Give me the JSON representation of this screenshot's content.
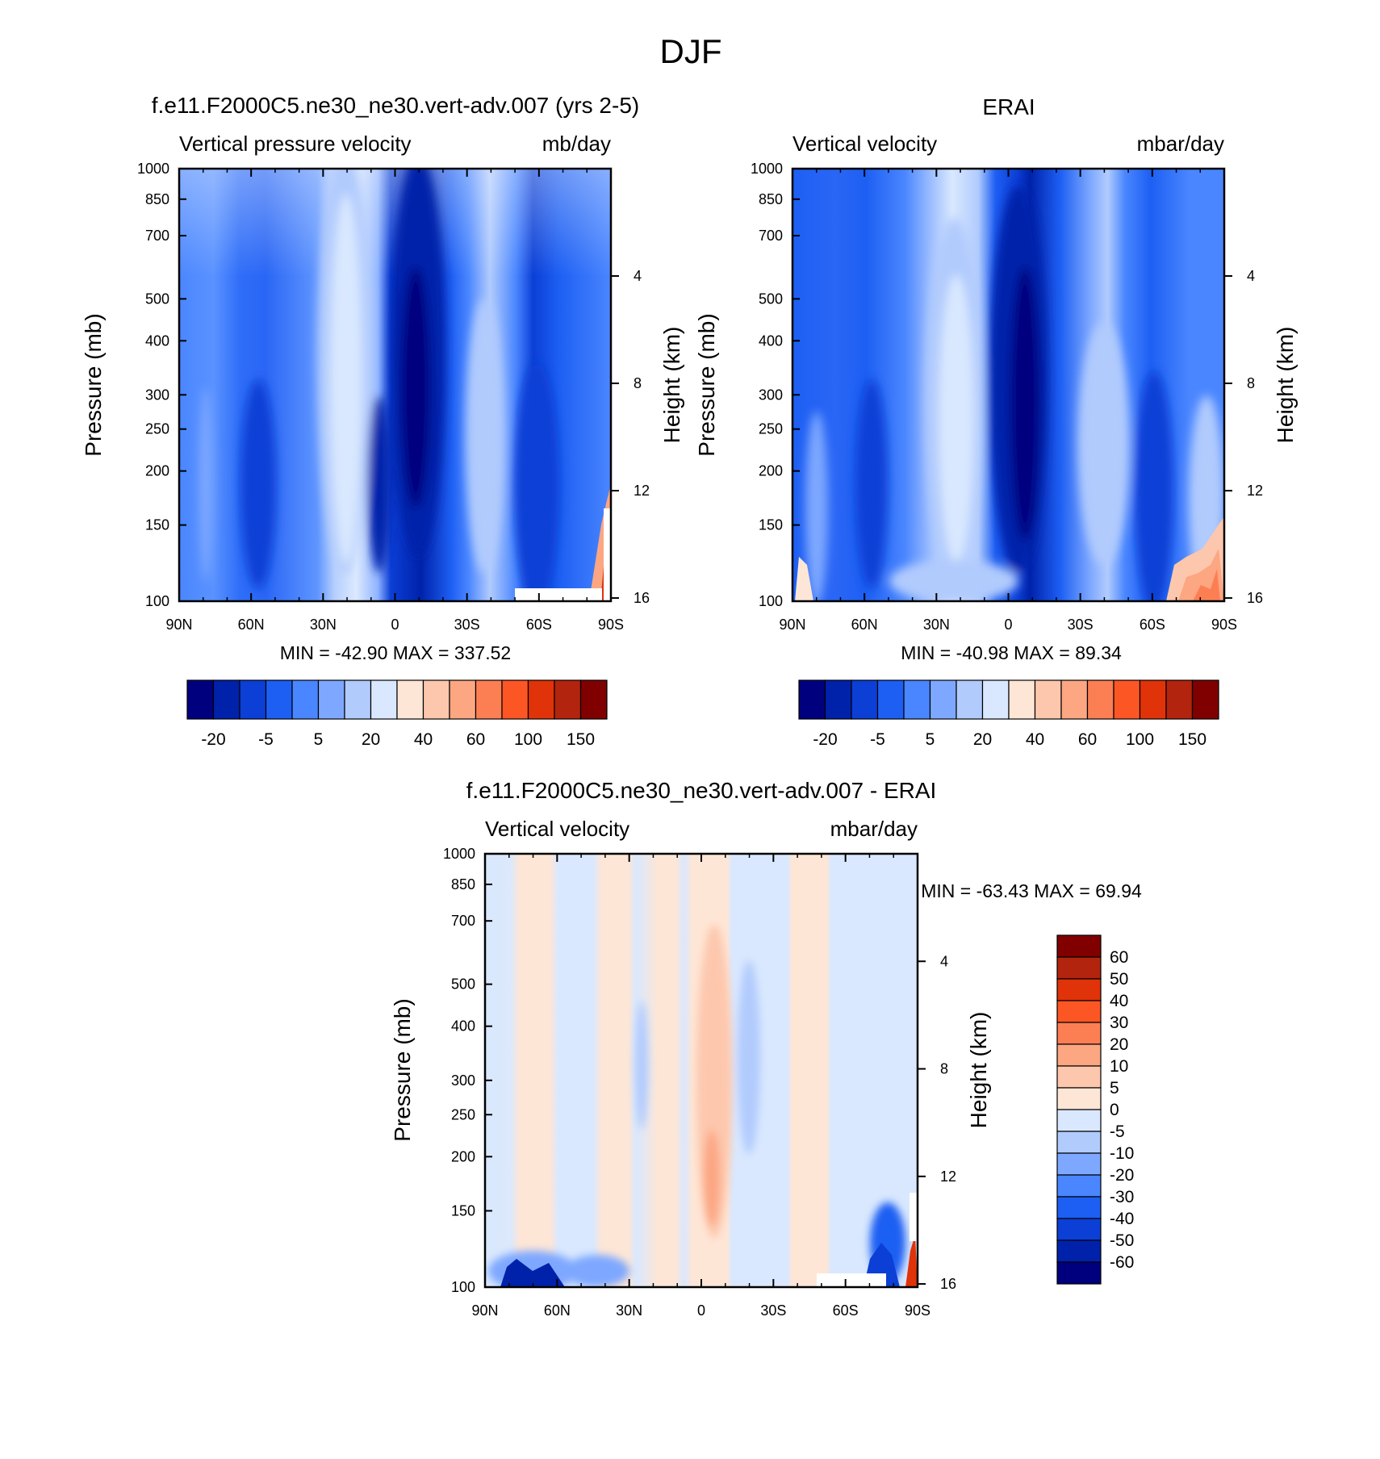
{
  "figure": {
    "title": "DJF"
  },
  "chart_data": [
    {
      "type": "heatmap",
      "title": "f.e11.F2000C5.ne30_ne30.vert-adv.007 (yrs 2-5)",
      "left_string": "Vertical pressure velocity",
      "right_string": "mb/day",
      "xlabel": "",
      "ylabel": "Pressure (mb)",
      "y2label": "Height (km)",
      "x_ticks": [
        "90N",
        "60N",
        "30N",
        "0",
        "30S",
        "60S",
        "90S"
      ],
      "y_ticks": [
        "100",
        "150",
        "200",
        "250",
        "300",
        "400",
        "500",
        "700",
        "850",
        "1000"
      ],
      "y2_ticks": [
        "16",
        "12",
        "8",
        "4"
      ],
      "xlim": [
        90,
        -90
      ],
      "ylim": [
        1000,
        100
      ],
      "y_scale": "log",
      "minmax": "MIN = -42.90  MAX = 337.52",
      "colorbar_labels": [
        "-20",
        "-5",
        "5",
        "20",
        "40",
        "60",
        "100",
        "150"
      ],
      "colorbar_colors": [
        "#00007f",
        "#0022aa",
        "#0b3fd6",
        "#1d5ff3",
        "#4a86ff",
        "#7ea8ff",
        "#b1cbfd",
        "#d9e8fe",
        "#fee6d6",
        "#fdc7ad",
        "#fca682",
        "#fc7f54",
        "#fd5625",
        "#e03309",
        "#b3240e",
        "#800000"
      ]
    },
    {
      "type": "heatmap",
      "title": "ERAI",
      "left_string": "Vertical velocity",
      "right_string": "mbar/day",
      "xlabel": "",
      "ylabel": "Pressure (mb)",
      "y2label": "Height (km)",
      "x_ticks": [
        "90N",
        "60N",
        "30N",
        "0",
        "30S",
        "60S",
        "90S"
      ],
      "y_ticks": [
        "100",
        "150",
        "200",
        "250",
        "300",
        "400",
        "500",
        "700",
        "850",
        "1000"
      ],
      "y2_ticks": [
        "16",
        "12",
        "8",
        "4"
      ],
      "xlim": [
        90,
        -90
      ],
      "ylim": [
        1000,
        100
      ],
      "y_scale": "log",
      "minmax": "MIN = -40.98  MAX =  89.34",
      "colorbar_labels": [
        "-20",
        "-5",
        "5",
        "20",
        "40",
        "60",
        "100",
        "150"
      ],
      "colorbar_colors": [
        "#00007f",
        "#0022aa",
        "#0b3fd6",
        "#1d5ff3",
        "#4a86ff",
        "#7ea8ff",
        "#b1cbfd",
        "#d9e8fe",
        "#fee6d6",
        "#fdc7ad",
        "#fca682",
        "#fc7f54",
        "#fd5625",
        "#e03309",
        "#b3240e",
        "#800000"
      ]
    },
    {
      "type": "heatmap",
      "title": "f.e11.F2000C5.ne30_ne30.vert-adv.007 - ERAI",
      "left_string": "Vertical velocity",
      "right_string": "mbar/day",
      "xlabel": "",
      "ylabel": "Pressure (mb)",
      "y2label": "Height (km)",
      "x_ticks": [
        "90N",
        "60N",
        "30N",
        "0",
        "30S",
        "60S",
        "90S"
      ],
      "y_ticks": [
        "100",
        "150",
        "200",
        "250",
        "300",
        "400",
        "500",
        "700",
        "850",
        "1000"
      ],
      "y2_ticks": [
        "16",
        "12",
        "8",
        "4"
      ],
      "xlim": [
        90,
        -90
      ],
      "ylim": [
        1000,
        100
      ],
      "y_scale": "log",
      "minmax": "MIN = -63.43  MAX =  69.94",
      "colorbar_labels": [
        "60",
        "50",
        "40",
        "30",
        "20",
        "10",
        "5",
        "0",
        "-5",
        "-10",
        "-20",
        "-30",
        "-40",
        "-50",
        "-60"
      ],
      "colorbar_colors": [
        "#800000",
        "#b3240e",
        "#e03309",
        "#fd5625",
        "#fc7f54",
        "#fca682",
        "#fdc7ad",
        "#fee6d6",
        "#d9e8fe",
        "#b1cbfd",
        "#7ea8ff",
        "#4a86ff",
        "#1d5ff3",
        "#0b3fd6",
        "#0022aa",
        "#00007f"
      ]
    }
  ]
}
